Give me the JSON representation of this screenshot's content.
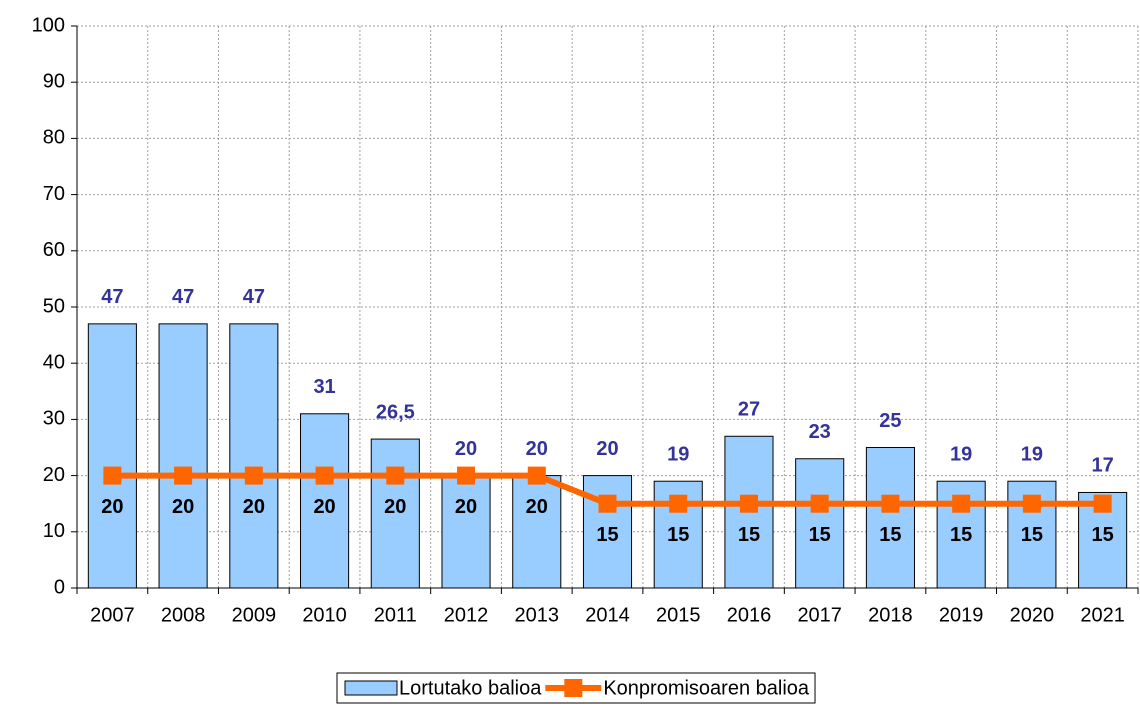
{
  "chart_data": {
    "type": "bar",
    "categories": [
      "2007",
      "2008",
      "2009",
      "2010",
      "2011",
      "2012",
      "2013",
      "2014",
      "2015",
      "2016",
      "2017",
      "2018",
      "2019",
      "2020",
      "2021"
    ],
    "series": [
      {
        "name": "Lortutako balioa",
        "type": "bar",
        "color": "#99ccff",
        "values": [
          47,
          47,
          47,
          31,
          26.5,
          20,
          20,
          20,
          19,
          27,
          23,
          25,
          19,
          19,
          17
        ],
        "value_labels": [
          "47",
          "47",
          "47",
          "31",
          "26,5",
          "20",
          "20",
          "20",
          "19",
          "27",
          "23",
          "25",
          "19",
          "19",
          "17"
        ]
      },
      {
        "name": "Konpromisoaren balioa",
        "type": "line",
        "color": "#ff6600",
        "values": [
          20,
          20,
          20,
          20,
          20,
          20,
          20,
          15,
          15,
          15,
          15,
          15,
          15,
          15,
          15
        ]
      }
    ],
    "ylim": [
      0,
      100
    ],
    "yticks": [
      0,
      10,
      20,
      30,
      40,
      50,
      60,
      70,
      80,
      90,
      100
    ],
    "grid": true,
    "legend": "bottom"
  }
}
